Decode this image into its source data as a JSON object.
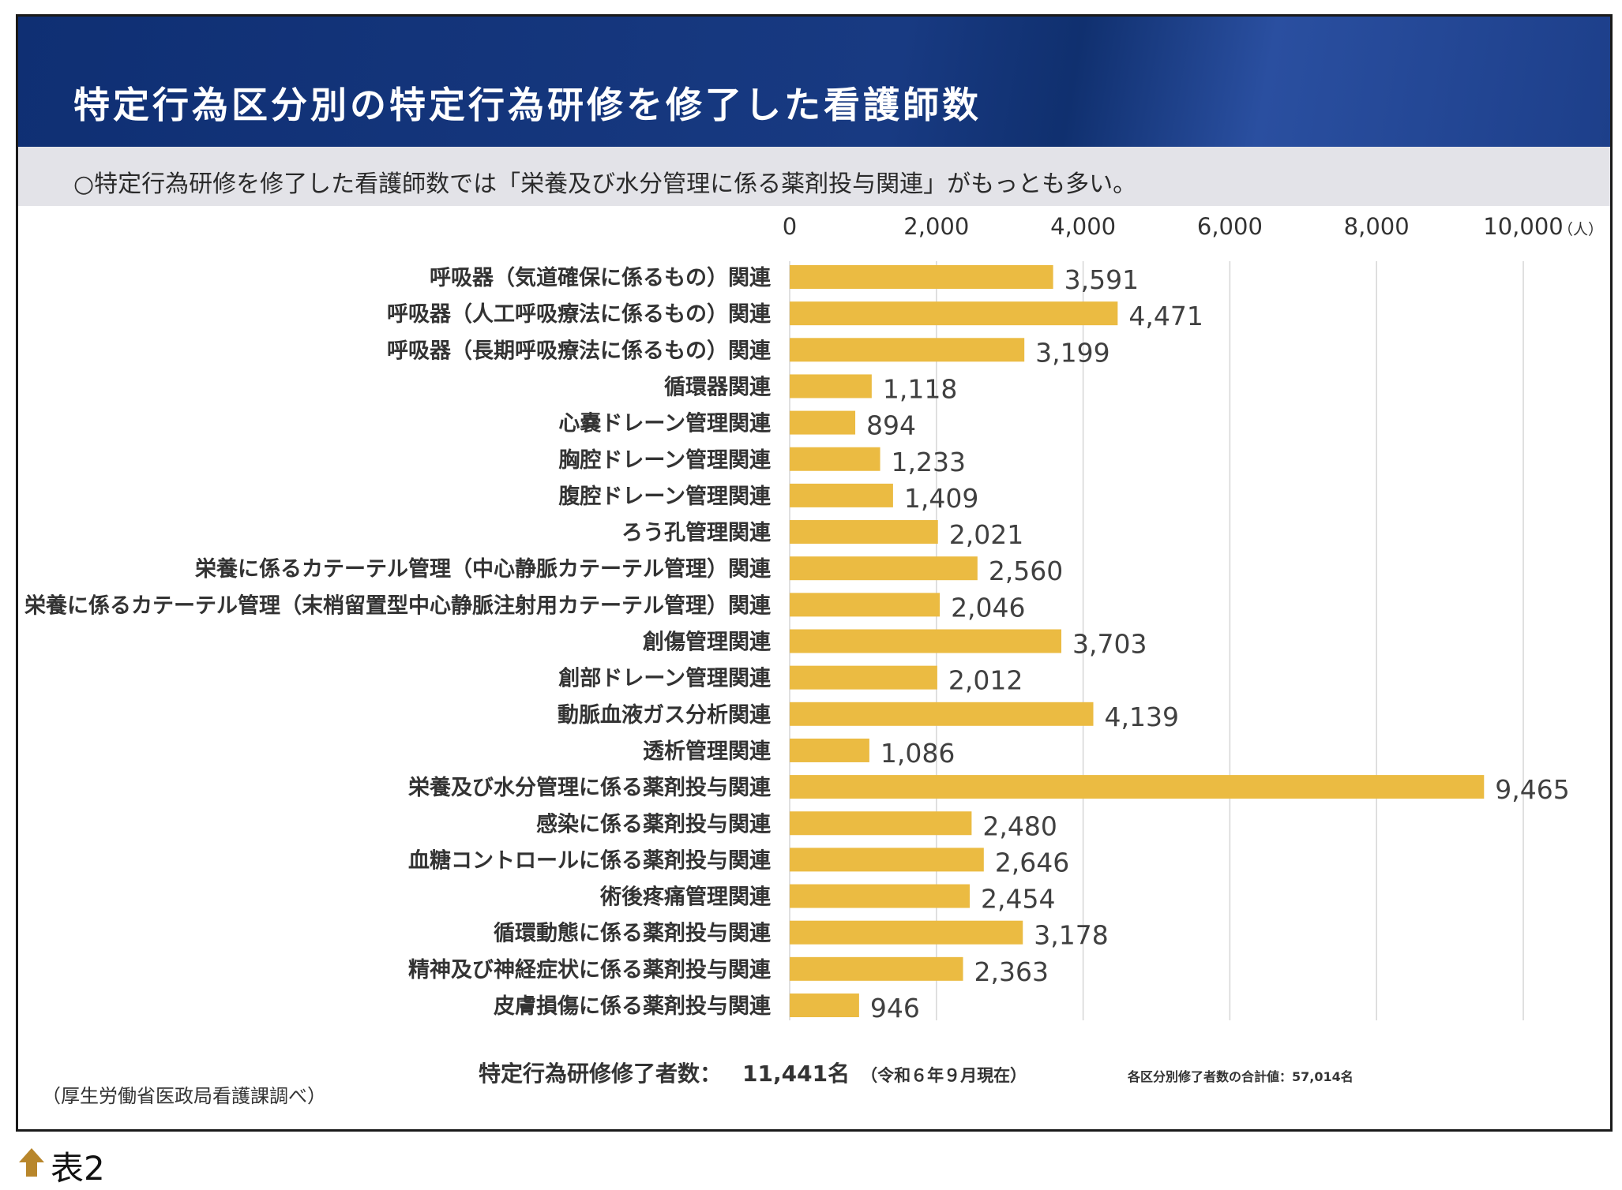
{
  "header": {
    "title": "特定行為区分別の特定行為研修を修了した看護師数",
    "summary": "○特定行為研修を修了した看護師数では「栄養及び水分管理に係る薬剤投与関連」がもっとも多い。"
  },
  "colors": {
    "bar": "#ebbb42",
    "header": "#13357a",
    "summary_bg": "#e3e3e8",
    "grid": "#d6d6d6",
    "arrow": "#b8862b"
  },
  "chart_data": {
    "type": "bar",
    "orientation": "horizontal",
    "categories": [
      "呼吸器（気道確保に係るもの）関連",
      "呼吸器（人工呼吸療法に係るもの）関連",
      "呼吸器（長期呼吸療法に係るもの）関連",
      "循環器関連",
      "心嚢ドレーン管理関連",
      "胸腔ドレーン管理関連",
      "腹腔ドレーン管理関連",
      "ろう孔管理関連",
      "栄養に係るカテーテル管理（中心静脈カテーテル管理）関連",
      "栄養に係るカテーテル管理（末梢留置型中心静脈注射用カテーテル管理）関連",
      "創傷管理関連",
      "創部ドレーン管理関連",
      "動脈血液ガス分析関連",
      "透析管理関連",
      "栄養及び水分管理に係る薬剤投与関連",
      "感染に係る薬剤投与関連",
      "血糖コントロールに係る薬剤投与関連",
      "術後疼痛管理関連",
      "循環動態に係る薬剤投与関連",
      "精神及び神経症状に係る薬剤投与関連",
      "皮膚損傷に係る薬剤投与関連"
    ],
    "values": [
      3591,
      4471,
      3199,
      1118,
      894,
      1233,
      1409,
      2021,
      2560,
      2046,
      3703,
      2012,
      4139,
      1086,
      9465,
      2480,
      2646,
      2454,
      3178,
      2363,
      946
    ],
    "value_labels": [
      "3,591",
      "4,471",
      "3,199",
      "1,118",
      "894",
      "1,233",
      "1,409",
      "2,021",
      "2,560",
      "2,046",
      "3,703",
      "2,012",
      "4,139",
      "1,086",
      "9,465",
      "2,480",
      "2,646",
      "2,454",
      "3,178",
      "2,363",
      "946"
    ],
    "xlim": [
      0,
      10000
    ],
    "ticks": [
      0,
      2000,
      4000,
      6000,
      8000,
      10000
    ],
    "tick_labels": [
      "0",
      "2,000",
      "4,000",
      "6,000",
      "8,000",
      "10,000"
    ],
    "x_unit": "（人）",
    "grid": true,
    "legend": "none"
  },
  "footer": {
    "total_label": "特定行為研修修了者数：",
    "total_value": "11,441名",
    "total_asof": "（令和６年９月現在）",
    "sum_note": "各区分別修了者数の合計値：57,014名",
    "source": "（厚生労働省医政局看護課調べ）"
  },
  "caption": {
    "text": "表2"
  }
}
